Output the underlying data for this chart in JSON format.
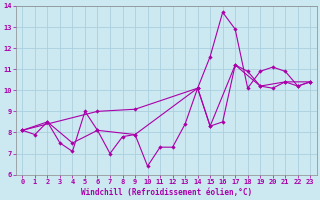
{
  "xlabel": "Windchill (Refroidissement éolien,°C)",
  "xlim": [
    -0.5,
    23.5
  ],
  "ylim": [
    6,
    14
  ],
  "xticks": [
    0,
    1,
    2,
    3,
    4,
    5,
    6,
    7,
    8,
    9,
    10,
    11,
    12,
    13,
    14,
    15,
    16,
    17,
    18,
    19,
    20,
    21,
    22,
    23
  ],
  "yticks": [
    6,
    7,
    8,
    9,
    10,
    11,
    12,
    13,
    14
  ],
  "bg_color": "#cce8f0",
  "grid_color": "#aad0de",
  "line_color": "#aa00aa",
  "marker_color": "#aa00aa",
  "line1_x": [
    0,
    1,
    2,
    3,
    4,
    5,
    6,
    7,
    8,
    9,
    10,
    11,
    12,
    13,
    14,
    15,
    16,
    17,
    18,
    19,
    20,
    21,
    22,
    23
  ],
  "line1_y": [
    8.1,
    7.9,
    8.5,
    7.5,
    7.1,
    9.0,
    8.1,
    7.0,
    7.8,
    7.9,
    6.4,
    7.3,
    7.3,
    8.4,
    10.1,
    8.3,
    8.5,
    11.2,
    10.9,
    10.2,
    10.1,
    10.4,
    10.2,
    10.4
  ],
  "line2_x": [
    0,
    6,
    9,
    14,
    15,
    16,
    17,
    18,
    19,
    20,
    21,
    22,
    23
  ],
  "line2_y": [
    8.1,
    9.0,
    9.1,
    10.1,
    11.6,
    13.7,
    12.9,
    10.1,
    10.9,
    11.1,
    10.9,
    10.2,
    10.4
  ],
  "line3_x": [
    0,
    2,
    4,
    6,
    9,
    14,
    15,
    17,
    19,
    21,
    23
  ],
  "line3_y": [
    8.1,
    8.5,
    7.5,
    8.1,
    7.9,
    10.1,
    8.3,
    11.2,
    10.2,
    10.4,
    10.4
  ],
  "tick_fontsize": 5.0,
  "label_fontsize": 5.5
}
